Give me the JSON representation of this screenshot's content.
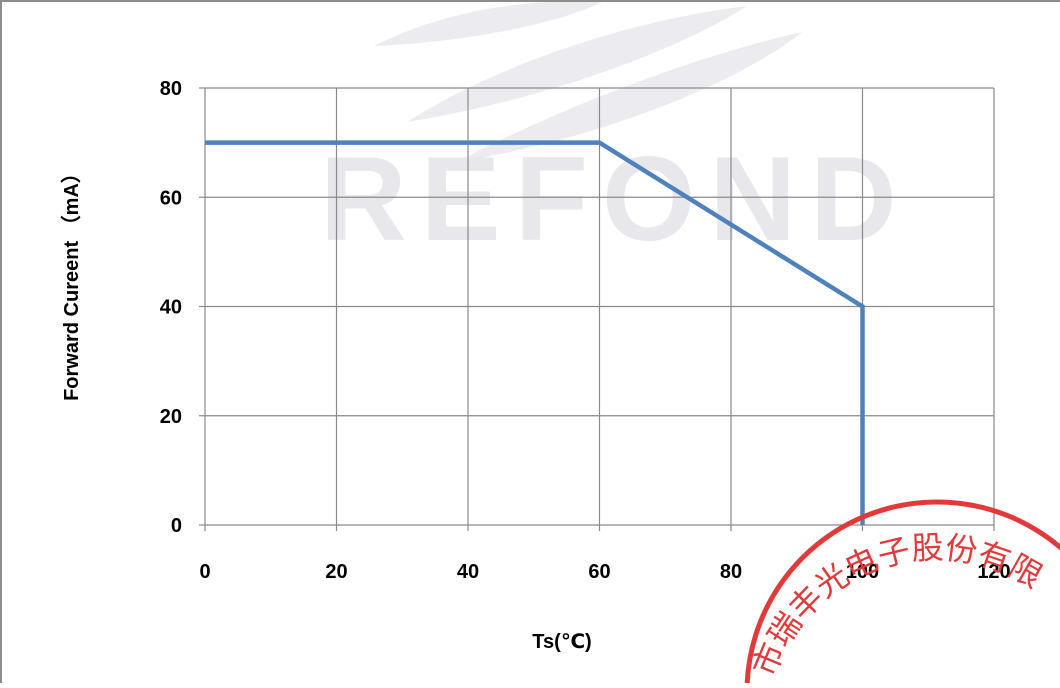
{
  "watermark": {
    "text": "REFOND",
    "color": "#e8e8ec"
  },
  "seal": {
    "text": "市瑞丰光电子股份有限",
    "color": "#e23a3a"
  },
  "chart_data": {
    "type": "line",
    "title": "",
    "xlabel": "Ts(℃)",
    "ylabel": "Forward Cureent （mA）",
    "xlim": [
      0,
      120
    ],
    "ylim": [
      0,
      80
    ],
    "xticks": [
      0,
      20,
      40,
      60,
      80,
      100,
      120
    ],
    "yticks": [
      0,
      20,
      40,
      60,
      80
    ],
    "grid": true,
    "legend": "none",
    "series": [
      {
        "color": "#4f81bd",
        "points": [
          [
            0,
            70
          ],
          [
            60,
            70
          ],
          [
            100,
            40
          ],
          [
            100,
            0
          ]
        ]
      }
    ]
  }
}
